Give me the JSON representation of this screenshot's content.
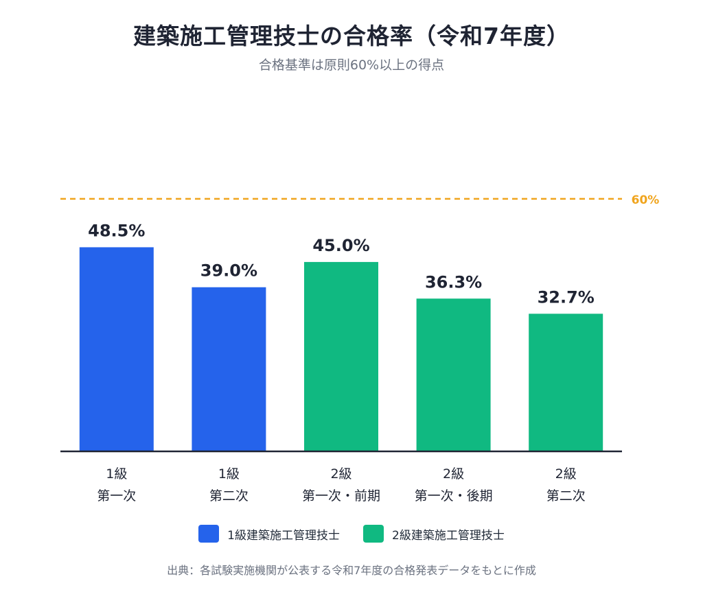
{
  "chart_data": {
    "type": "bar",
    "title": "建築施工管理技士の合格率（令和7年度）",
    "subtitle": "合格基準は原則60%以上の得点",
    "categories": [
      [
        "1級",
        "第一次"
      ],
      [
        "1級",
        "第二次"
      ],
      [
        "2級",
        "第一次・前期"
      ],
      [
        "2級",
        "第一次・後期"
      ],
      [
        "2級",
        "第二次"
      ]
    ],
    "values": [
      48.5,
      39.0,
      45.0,
      36.3,
      32.7
    ],
    "value_labels": [
      "48.5%",
      "39.0%",
      "45.0%",
      "36.3%",
      "32.7%"
    ],
    "bar_series": [
      0,
      0,
      1,
      1,
      1
    ],
    "series": [
      {
        "name": "1級建築施工管理技士",
        "color": "#2563eb"
      },
      {
        "name": "2級建築施工管理技士",
        "color": "#10b981"
      }
    ],
    "reference_line": {
      "value": 60,
      "label": "60%",
      "color": "#f0a41c",
      "style": "dashed"
    },
    "ylim": [
      0,
      66.5
    ],
    "xlabel": "",
    "ylabel": "",
    "grid": false,
    "legend_position": "bottom"
  },
  "source": "出典：各試験実施機関が公表する令和7年度の合格発表データをもとに作成"
}
